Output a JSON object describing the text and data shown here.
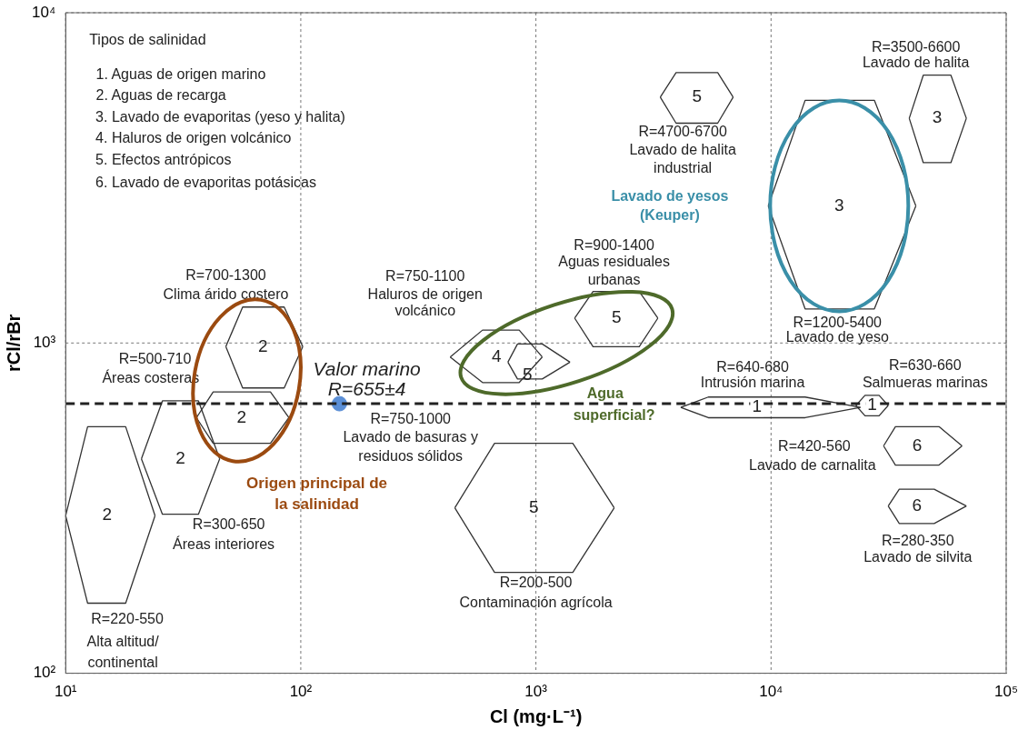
{
  "chart_data": {
    "type": "line",
    "xlabel": "Cl (mg·L⁻¹)",
    "ylabel": "rCl/rBr",
    "log": "xy",
    "xlim": [
      10,
      100000
    ],
    "ylim": [
      100,
      10000
    ],
    "xticks": [
      {
        "value": 10,
        "label": "10¹"
      },
      {
        "value": 100,
        "label": "10²"
      },
      {
        "value": 1000,
        "label": "10³"
      },
      {
        "value": 10000,
        "label": "10⁴"
      },
      {
        "value": 100000,
        "label": "10⁵"
      }
    ],
    "yticks": [
      {
        "value": 100,
        "label": "10²"
      },
      {
        "value": 1000,
        "label": "10³"
      },
      {
        "value": 10000,
        "label": "10⁴"
      }
    ],
    "grid": true,
    "legend": false,
    "marker": "none",
    "line_style": "solid",
    "ref_lines": [
      {
        "axis": "y",
        "value": 655,
        "color": "#222222",
        "line_style": "dashed"
      }
    ],
    "series": [
      {
        "color": "#333333",
        "x": [
          10,
          12.4,
          18,
          24
        ],
        "values": [
          300,
          558,
          558,
          300
        ]
      },
      {
        "color": "#333333",
        "x": [
          10,
          12.4,
          18,
          24
        ],
        "values": [
          300,
          163,
          163,
          300
        ]
      },
      {
        "color": "#333333",
        "x": [
          21,
          25.8,
          36.7,
          45.2
        ],
        "values": [
          446,
          668,
          668,
          446
        ]
      },
      {
        "color": "#333333",
        "x": [
          21,
          25.8,
          36.7,
          45.2
        ],
        "values": [
          446,
          303,
          303,
          446
        ]
      },
      {
        "color": "#333333",
        "x": [
          36,
          42.4,
          74.3,
          89
        ],
        "values": [
          594,
          711,
          711,
          594
        ]
      },
      {
        "color": "#333333",
        "x": [
          36,
          42.4,
          74.3,
          89
        ],
        "values": [
          594,
          497,
          497,
          594
        ]
      },
      {
        "color": "#333333",
        "x": [
          48,
          56.6,
          85,
          102
        ],
        "values": [
          975,
          1285,
          1285,
          975
        ]
      },
      {
        "color": "#333333",
        "x": [
          48,
          56.6,
          85,
          102
        ],
        "values": [
          975,
          731,
          731,
          975
        ]
      },
      {
        "color": "#333333",
        "x": [
          432,
          593,
          849,
          1064
        ],
        "values": [
          907,
          1094,
          1094,
          907
        ]
      },
      {
        "color": "#333333",
        "x": [
          432,
          593,
          849,
          1064
        ],
        "values": [
          907,
          759,
          759,
          907
        ]
      },
      {
        "color": "#333333",
        "x": [
          760,
          835,
          1064,
          1396
        ],
        "values": [
          875,
          993,
          993,
          875
        ]
      },
      {
        "color": "#333333",
        "x": [
          760,
          835,
          1064,
          1396
        ],
        "values": [
          875,
          778,
          778,
          875
        ]
      },
      {
        "color": "#333333",
        "x": [
          1462,
          1750,
          2750,
          3300
        ],
        "values": [
          1189,
          1432,
          1432,
          1189
        ]
      },
      {
        "color": "#333333",
        "x": [
          1462,
          1750,
          2750,
          3300
        ],
        "values": [
          1189,
          975,
          975,
          1189
        ]
      },
      {
        "color": "#333333",
        "x": [
          452,
          667,
          1435,
          2153
        ],
        "values": [
          317,
          497,
          497,
          317
        ]
      },
      {
        "color": "#333333",
        "x": [
          452,
          667,
          1435,
          2153
        ],
        "values": [
          317,
          202,
          202,
          317
        ]
      },
      {
        "color": "#333333",
        "x": [
          3380,
          3945,
          5930,
          6900
        ],
        "values": [
          5550,
          6590,
          6590,
          5550
        ]
      },
      {
        "color": "#333333",
        "x": [
          3380,
          3945,
          5930,
          6900
        ],
        "values": [
          5550,
          4630,
          4630,
          5550
        ]
      },
      {
        "color": "#333333",
        "x": [
          9730,
          13960,
          27500,
          41300
        ],
        "values": [
          2600,
          5430,
          5430,
          2600
        ]
      },
      {
        "color": "#333333",
        "x": [
          9730,
          13960,
          27500,
          41300
        ],
        "values": [
          2600,
          1268,
          1268,
          2600
        ]
      },
      {
        "color": "#333333",
        "x": [
          38700,
          44400,
          58200,
          67700
        ],
        "values": [
          4790,
          6470,
          6470,
          4790
        ]
      },
      {
        "color": "#333333",
        "x": [
          38700,
          44400,
          58200,
          67700
        ],
        "values": [
          4790,
          3515,
          3515,
          4790
        ]
      },
      {
        "color": "#333333",
        "x": [
          4130,
          5410,
          13960,
          24000
        ],
        "values": [
          638,
          686,
          686,
          638
        ]
      },
      {
        "color": "#333333",
        "x": [
          4130,
          5410,
          13960,
          24000
        ],
        "values": [
          638,
          594,
          594,
          638
        ]
      },
      {
        "color": "#333333",
        "x": [
          22950,
          25100,
          28800,
          31500
        ],
        "values": [
          647,
          694,
          694,
          647
        ]
      },
      {
        "color": "#333333",
        "x": [
          22950,
          25100,
          28800,
          31500
        ],
        "values": [
          647,
          602,
          602,
          647
        ]
      },
      {
        "color": "#333333",
        "x": [
          30100,
          33800,
          51800,
          64900
        ],
        "values": [
          488,
          558,
          558,
          488
        ]
      },
      {
        "color": "#333333",
        "x": [
          30100,
          33800,
          51800,
          64900
        ],
        "values": [
          488,
          427,
          427,
          488
        ]
      },
      {
        "color": "#333333",
        "x": [
          31500,
          35100,
          49400,
          67700
        ],
        "values": [
          321,
          361,
          361,
          321
        ]
      },
      {
        "color": "#333333",
        "x": [
          31500,
          35100,
          49400,
          67700
        ],
        "values": [
          321,
          284,
          284,
          321
        ]
      },
      {
        "type": "scatter",
        "marker": "circle",
        "color": "#5b8fd6",
        "x": [
          146
        ],
        "values": [
          655
        ]
      }
    ],
    "annotations": [
      "Tipos de salinidad",
      "1. Aguas de origen marino",
      "2. Aguas de recarga",
      "3. Lavado de evaporitas (yeso y halita)",
      "4. Haluros de origen volcánico",
      "5. Efectos antrópicos",
      "6. Lavado de evaporitas potásicas",
      "R=220-550",
      "Alta altitud/",
      "continental",
      "R=300-650",
      "Áreas interiores",
      "R=500-710",
      "Áreas costeras",
      "R=700-1300",
      "Clima árido costero",
      "R=750-1100",
      "Haluros de origen",
      "volcánico",
      "R=750-1000",
      "Lavado de basuras y",
      "residuos sólidos",
      "R=900-1400",
      "Aguas residuales",
      "urbanas",
      "R=200-500",
      "Contaminación agrícola",
      "R=4700-6700",
      "Lavado de halita",
      "industrial",
      "R=3500-6600",
      "Lavado de halita",
      "R=1200-5400",
      "Lavado de yeso",
      "R=640-680",
      "Intrusión marina",
      "R=630-660",
      "Salmueras marinas",
      "R=420-560",
      "Lavado de carnalita",
      "R=280-350",
      "Lavado de silvita",
      "Valor marino",
      "R=655±4",
      "Lavado de yesos",
      "(Keuper)",
      "Agua",
      "superficial?",
      "Origen principal de",
      "la salinidad",
      "2",
      "2",
      "2",
      "2",
      "4",
      "5",
      "5",
      "5",
      "5",
      "3",
      "3",
      "1",
      "1",
      "6",
      "6"
    ]
  }
}
